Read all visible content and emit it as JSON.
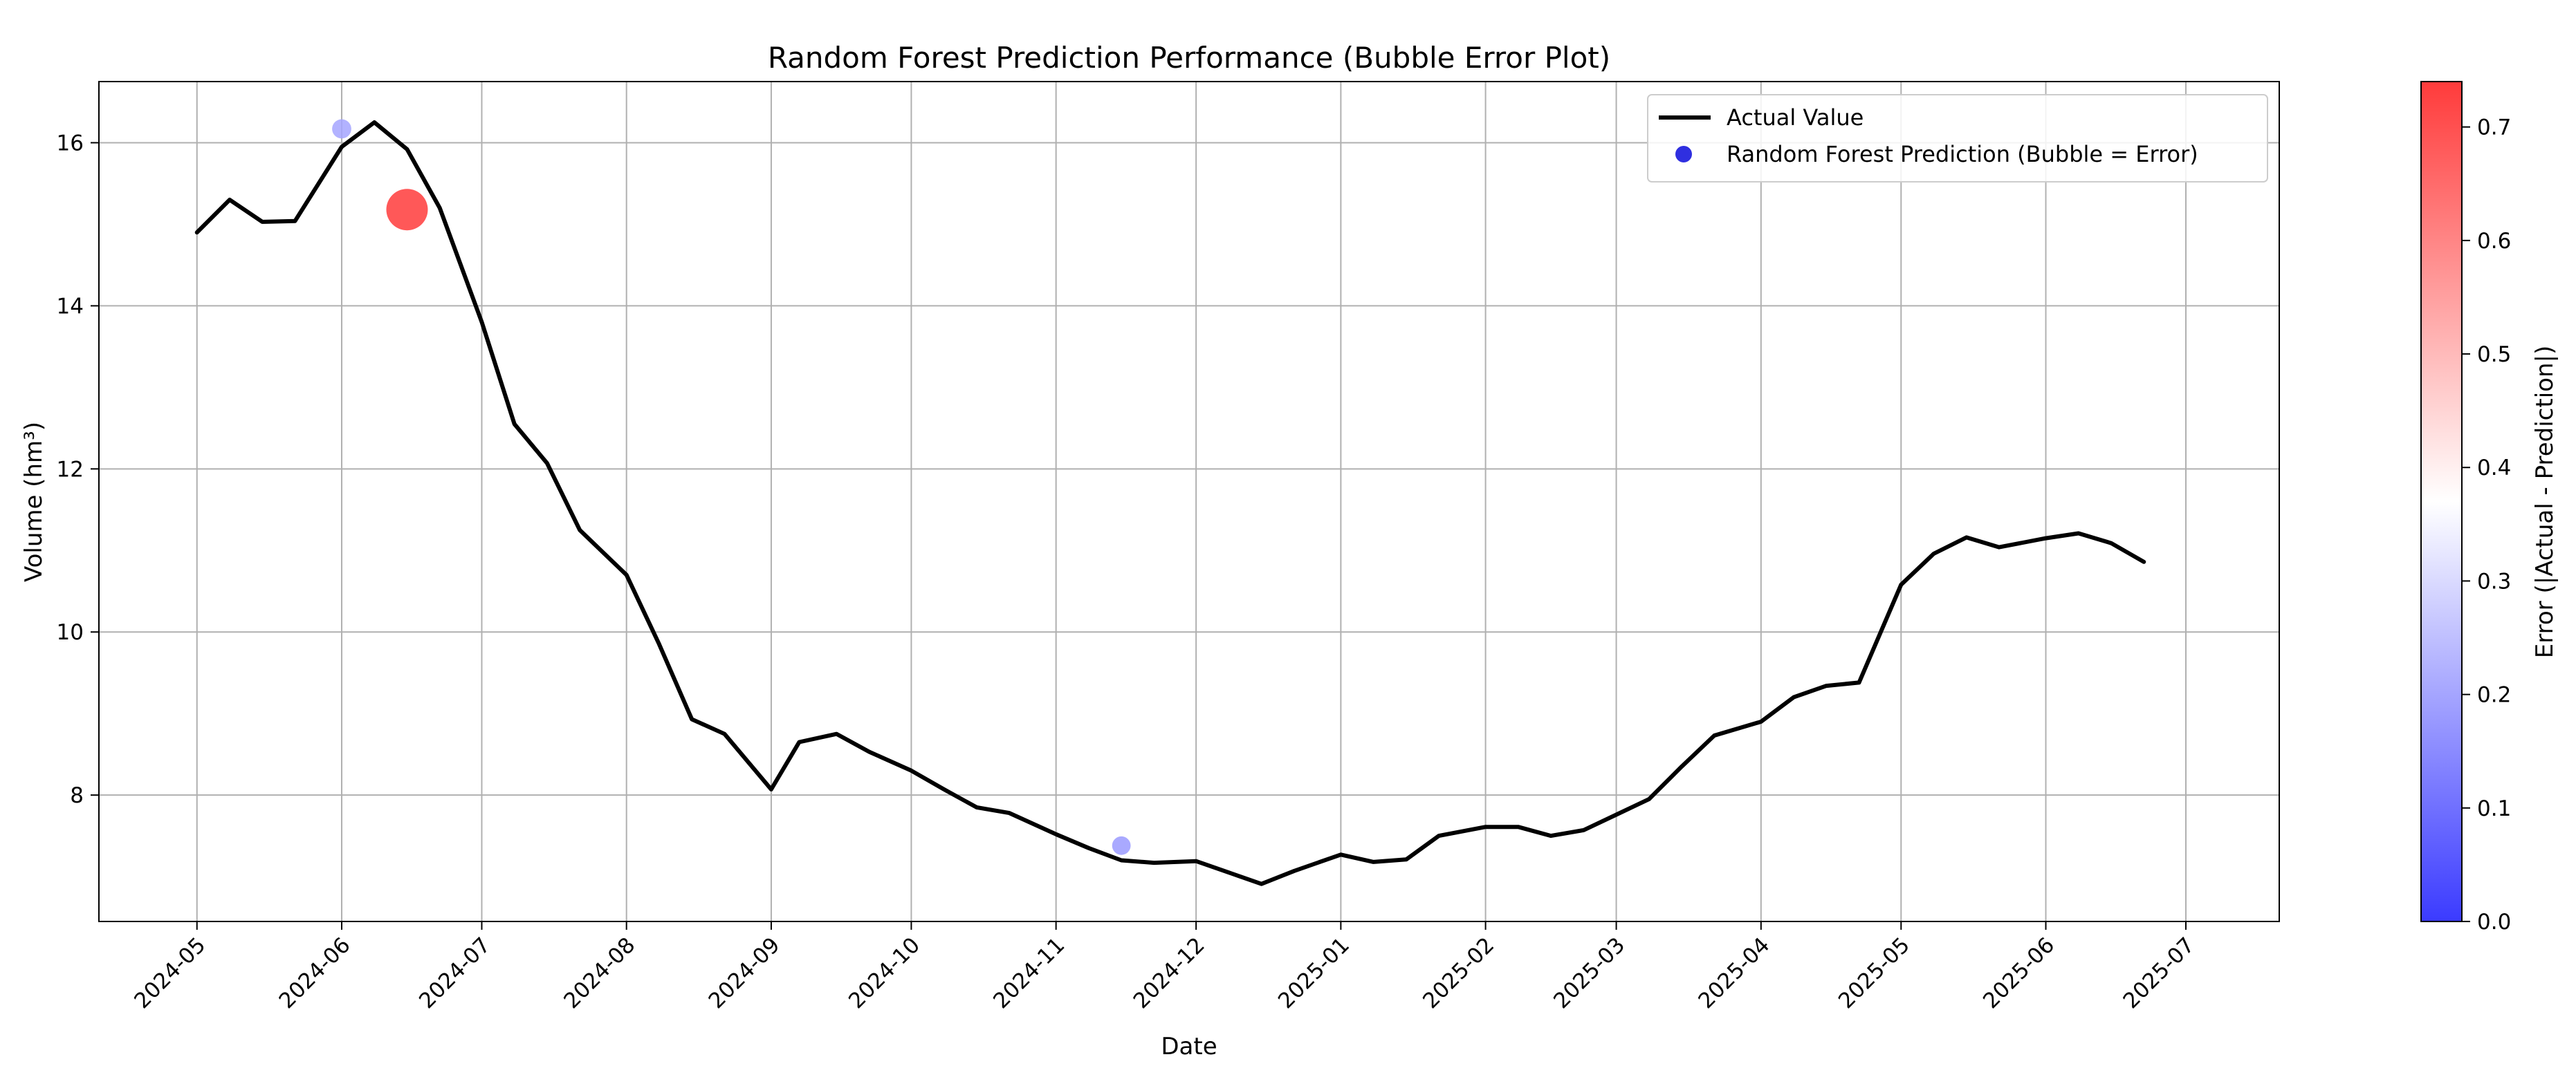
{
  "chart_data": {
    "type": "line",
    "title": "Random Forest Prediction Performance (Bubble Error Plot)",
    "xlabel": "Date",
    "ylabel": "Volume (hm³)",
    "xlim": [
      "2024-04-10",
      "2025-07-21"
    ],
    "ylim": [
      6.45,
      16.75
    ],
    "grid": true,
    "legend_position": "top-right",
    "x_ticks": [
      "2024-05",
      "2024-06",
      "2024-07",
      "2024-08",
      "2024-09",
      "2024-10",
      "2024-11",
      "2024-12",
      "2025-01",
      "2025-02",
      "2025-03",
      "2025-04",
      "2025-05",
      "2025-06",
      "2025-07"
    ],
    "y_ticks": [
      8,
      10,
      12,
      14,
      16
    ],
    "series": [
      {
        "name": "Actual Value",
        "kind": "line",
        "color": "#000000",
        "points": [
          [
            "2024-05-01",
            14.9
          ],
          [
            "2024-05-08",
            15.3
          ],
          [
            "2024-05-15",
            15.03
          ],
          [
            "2024-05-22",
            15.04
          ],
          [
            "2024-06-01",
            15.95
          ],
          [
            "2024-06-08",
            16.25
          ],
          [
            "2024-06-15",
            15.92
          ],
          [
            "2024-06-22",
            15.2
          ],
          [
            "2024-07-01",
            13.8
          ],
          [
            "2024-07-08",
            12.55
          ],
          [
            "2024-07-15",
            12.07
          ],
          [
            "2024-07-22",
            11.25
          ],
          [
            "2024-08-01",
            10.7
          ],
          [
            "2024-08-08",
            9.85
          ],
          [
            "2024-08-15",
            8.93
          ],
          [
            "2024-08-22",
            8.75
          ],
          [
            "2024-09-01",
            8.07
          ],
          [
            "2024-09-07",
            8.65
          ],
          [
            "2024-09-15",
            8.75
          ],
          [
            "2024-09-22",
            8.53
          ],
          [
            "2024-10-01",
            8.3
          ],
          [
            "2024-10-08",
            8.07
          ],
          [
            "2024-10-15",
            7.85
          ],
          [
            "2024-10-22",
            7.78
          ],
          [
            "2024-11-01",
            7.52
          ],
          [
            "2024-11-08",
            7.35
          ],
          [
            "2024-11-15",
            7.2
          ],
          [
            "2024-11-22",
            7.17
          ],
          [
            "2024-12-01",
            7.19
          ],
          [
            "2024-12-08",
            7.05
          ],
          [
            "2024-12-15",
            6.91
          ],
          [
            "2024-12-22",
            7.07
          ],
          [
            "2025-01-01",
            7.27
          ],
          [
            "2025-01-08",
            7.18
          ],
          [
            "2025-01-15",
            7.21
          ],
          [
            "2025-01-22",
            7.5
          ],
          [
            "2025-02-01",
            7.61
          ],
          [
            "2025-02-08",
            7.61
          ],
          [
            "2025-02-15",
            7.5
          ],
          [
            "2025-02-22",
            7.57
          ],
          [
            "2025-03-01",
            7.76
          ],
          [
            "2025-03-08",
            7.95
          ],
          [
            "2025-03-15",
            8.35
          ],
          [
            "2025-03-22",
            8.73
          ],
          [
            "2025-04-01",
            8.9
          ],
          [
            "2025-04-08",
            9.2
          ],
          [
            "2025-04-15",
            9.34
          ],
          [
            "2025-04-22",
            9.38
          ],
          [
            "2025-05-01",
            10.58
          ],
          [
            "2025-05-08",
            10.96
          ],
          [
            "2025-05-15",
            11.16
          ],
          [
            "2025-05-22",
            11.04
          ],
          [
            "2025-06-01",
            11.15
          ],
          [
            "2025-06-08",
            11.21
          ],
          [
            "2025-06-15",
            11.09
          ],
          [
            "2025-06-22",
            10.86
          ]
        ]
      },
      {
        "name": "Random Forest Prediction (Bubble = Error)",
        "kind": "bubble",
        "points": [
          [
            "2024-06-01",
            16.17,
            0.2
          ],
          [
            "2024-06-15",
            15.18,
            0.74
          ],
          [
            "2024-11-15",
            7.38,
            0.18
          ]
        ]
      }
    ],
    "colorbar": {
      "label": "Error (|Actual - Prediction|)",
      "colormap": "bwr",
      "range": [
        0.0,
        0.74
      ],
      "ticks": [
        0.0,
        0.1,
        0.2,
        0.3,
        0.4,
        0.5,
        0.6,
        0.7
      ],
      "tick_labels": [
        "0.0",
        "0.1",
        "0.2",
        "0.3",
        "0.4",
        "0.5",
        "0.6",
        "0.7"
      ]
    }
  }
}
